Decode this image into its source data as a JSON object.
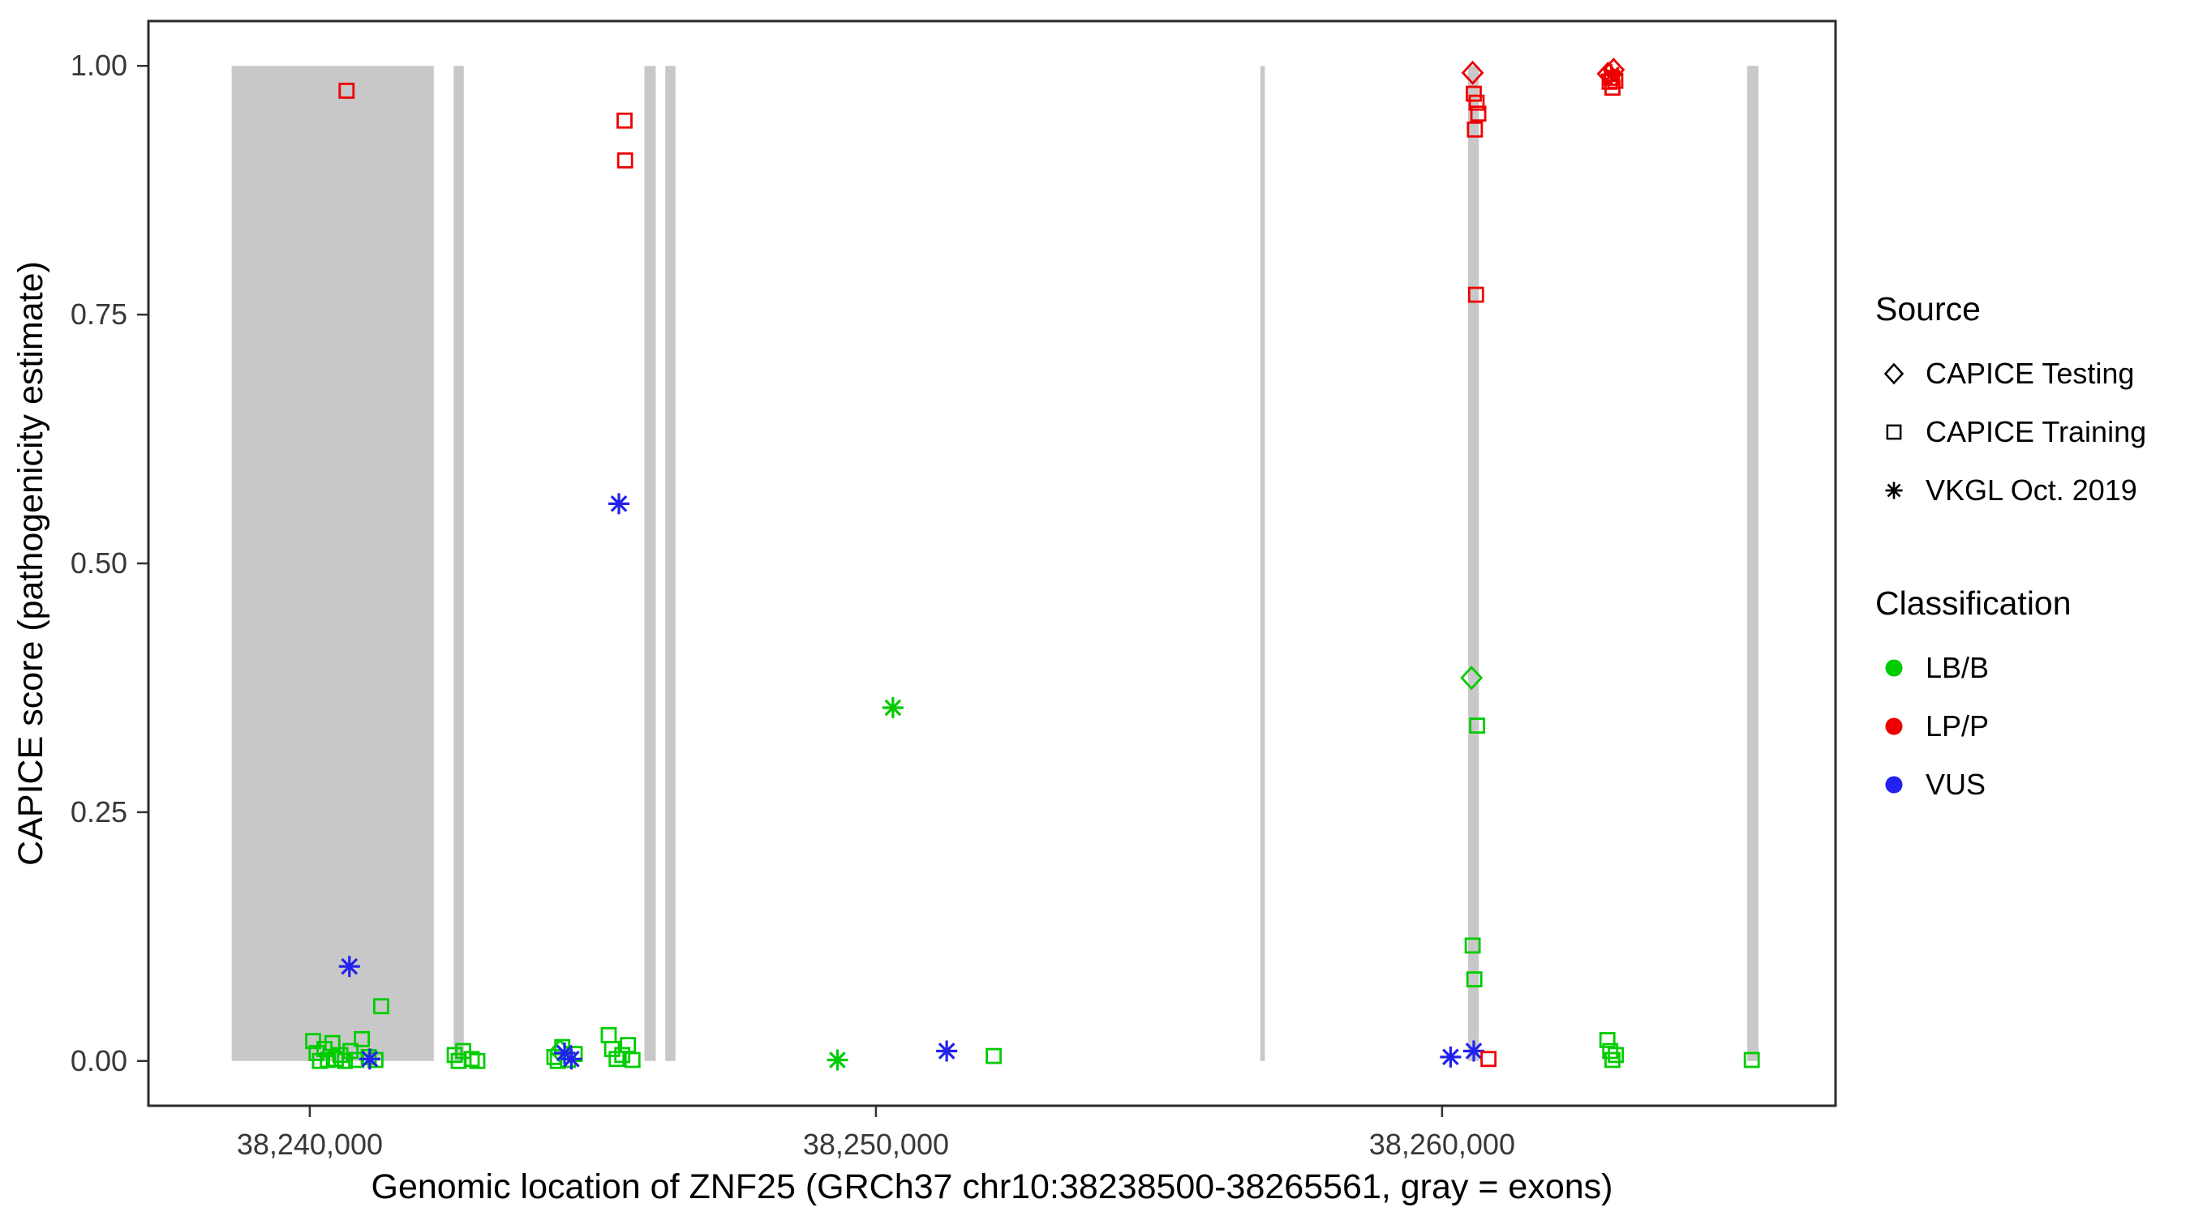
{
  "axes": {
    "x_title": "Genomic location of ZNF25 (GRCh37 chr10:38238500-38265561, gray = exons)",
    "y_title": "CAPICE score (pathogenicity estimate)"
  },
  "legend": {
    "source": {
      "title": "Source",
      "items": [
        {
          "label": "CAPICE Testing",
          "shape": "diamond"
        },
        {
          "label": "CAPICE Training",
          "shape": "square"
        },
        {
          "label": "VKGL Oct. 2019",
          "shape": "asterisk"
        }
      ]
    },
    "classification": {
      "title": "Classification",
      "items": [
        {
          "label": "LB/B",
          "color": "#00CC00"
        },
        {
          "label": "LP/P",
          "color": "#EE0000"
        },
        {
          "label": "VUS",
          "color": "#2222EE"
        }
      ]
    }
  },
  "chart_data": {
    "type": "scatter",
    "title": "",
    "xlabel": "Genomic location of ZNF25 (GRCh37 chr10:38238500-38265561, gray = exons)",
    "ylabel": "CAPICE score (pathogenicity estimate)",
    "x_domain": [
      38237150,
      38266950
    ],
    "y_domain": [
      -0.045,
      1.045
    ],
    "legend_position": "right",
    "grid": false,
    "x_ticks": [
      {
        "bp": 38240000,
        "label": "38,240,000"
      },
      {
        "bp": 38250000,
        "label": "38,250,000"
      },
      {
        "bp": 38260000,
        "label": "38,260,000"
      }
    ],
    "y_ticks": [
      {
        "value": 0.0,
        "label": "0.00"
      },
      {
        "value": 0.25,
        "label": "0.25"
      },
      {
        "value": 0.5,
        "label": "0.50"
      },
      {
        "value": 0.75,
        "label": "0.75"
      },
      {
        "value": 1.0,
        "label": "1.00"
      }
    ],
    "exon_color": "#C8C8C8",
    "exon_y_range": [
      0,
      1
    ],
    "exons": [
      [
        38238620,
        38242190
      ],
      [
        38242540,
        38242720
      ],
      [
        38245910,
        38246110
      ],
      [
        38246280,
        38246460
      ],
      [
        38256790,
        38256870
      ],
      [
        38260460,
        38260650
      ],
      [
        38265390,
        38265590
      ]
    ],
    "class_colors": {
      "LB/B": "#00CC00",
      "LP/P": "#EE0000",
      "VUS": "#2222EE"
    },
    "source_shapes": {
      "CAPICE Testing": "diamond",
      "CAPICE Training": "square",
      "VKGL Oct. 2019": "asterisk"
    },
    "points": [
      {
        "bp": 38240060,
        "score": 0.02,
        "cls": "LB/B",
        "src": "CAPICE Training"
      },
      {
        "bp": 38240120,
        "score": 0.008,
        "cls": "LB/B",
        "src": "CAPICE Training"
      },
      {
        "bp": 38240180,
        "score": 0.0,
        "cls": "LB/B",
        "src": "CAPICE Training"
      },
      {
        "bp": 38240260,
        "score": 0.012,
        "cls": "LB/B",
        "src": "CAPICE Training"
      },
      {
        "bp": 38240320,
        "score": 0.001,
        "cls": "LB/B",
        "src": "CAPICE Training"
      },
      {
        "bp": 38240400,
        "score": 0.018,
        "cls": "LB/B",
        "src": "CAPICE Training"
      },
      {
        "bp": 38240460,
        "score": 0.002,
        "cls": "LB/B",
        "src": "CAPICE Training"
      },
      {
        "bp": 38240540,
        "score": 0.006,
        "cls": "LB/B",
        "src": "CAPICE Training"
      },
      {
        "bp": 38240620,
        "score": 0.0,
        "cls": "LB/B",
        "src": "CAPICE Training"
      },
      {
        "bp": 38240720,
        "score": 0.01,
        "cls": "LB/B",
        "src": "CAPICE Training"
      },
      {
        "bp": 38240820,
        "score": 0.001,
        "cls": "LB/B",
        "src": "CAPICE Training"
      },
      {
        "bp": 38240920,
        "score": 0.022,
        "cls": "LB/B",
        "src": "CAPICE Training"
      },
      {
        "bp": 38241040,
        "score": 0.004,
        "cls": "LB/B",
        "src": "CAPICE Training"
      },
      {
        "bp": 38241160,
        "score": 0.001,
        "cls": "LB/B",
        "src": "CAPICE Training"
      },
      {
        "bp": 38241260,
        "score": 0.055,
        "cls": "LB/B",
        "src": "CAPICE Training"
      },
      {
        "bp": 38240650,
        "score": 0.975,
        "cls": "LP/P",
        "src": "CAPICE Training"
      },
      {
        "bp": 38240700,
        "score": 0.095,
        "cls": "VUS",
        "src": "VKGL Oct. 2019"
      },
      {
        "bp": 38241060,
        "score": 0.002,
        "cls": "VUS",
        "src": "VKGL Oct. 2019"
      },
      {
        "bp": 38242560,
        "score": 0.006,
        "cls": "LB/B",
        "src": "CAPICE Training"
      },
      {
        "bp": 38242630,
        "score": 0.0,
        "cls": "LB/B",
        "src": "CAPICE Training"
      },
      {
        "bp": 38242710,
        "score": 0.01,
        "cls": "LB/B",
        "src": "CAPICE Training"
      },
      {
        "bp": 38242860,
        "score": 0.002,
        "cls": "LB/B",
        "src": "CAPICE Training"
      },
      {
        "bp": 38242960,
        "score": 0.0,
        "cls": "LB/B",
        "src": "CAPICE Training"
      },
      {
        "bp": 38244320,
        "score": 0.004,
        "cls": "LB/B",
        "src": "CAPICE Training"
      },
      {
        "bp": 38244380,
        "score": 0.0,
        "cls": "LB/B",
        "src": "CAPICE Training"
      },
      {
        "bp": 38244460,
        "score": 0.014,
        "cls": "LB/B",
        "src": "CAPICE Training"
      },
      {
        "bp": 38244560,
        "score": 0.001,
        "cls": "LB/B",
        "src": "CAPICE Training"
      },
      {
        "bp": 38244680,
        "score": 0.007,
        "cls": "LB/B",
        "src": "CAPICE Training"
      },
      {
        "bp": 38244420,
        "score": 0.01,
        "cls": "LB/B",
        "src": "CAPICE Testing"
      },
      {
        "bp": 38244500,
        "score": 0.008,
        "cls": "VUS",
        "src": "VKGL Oct. 2019"
      },
      {
        "bp": 38244620,
        "score": 0.002,
        "cls": "VUS",
        "src": "VKGL Oct. 2019"
      },
      {
        "bp": 38245280,
        "score": 0.026,
        "cls": "LB/B",
        "src": "CAPICE Training"
      },
      {
        "bp": 38245340,
        "score": 0.012,
        "cls": "LB/B",
        "src": "CAPICE Training"
      },
      {
        "bp": 38245420,
        "score": 0.002,
        "cls": "LB/B",
        "src": "CAPICE Training"
      },
      {
        "bp": 38245520,
        "score": 0.006,
        "cls": "LB/B",
        "src": "CAPICE Training"
      },
      {
        "bp": 38245620,
        "score": 0.016,
        "cls": "LB/B",
        "src": "CAPICE Training"
      },
      {
        "bp": 38245700,
        "score": 0.001,
        "cls": "LB/B",
        "src": "CAPICE Training"
      },
      {
        "bp": 38245460,
        "score": 0.56,
        "cls": "VUS",
        "src": "VKGL Oct. 2019"
      },
      {
        "bp": 38245560,
        "score": 0.945,
        "cls": "LP/P",
        "src": "CAPICE Training"
      },
      {
        "bp": 38245570,
        "score": 0.905,
        "cls": "LP/P",
        "src": "CAPICE Training"
      },
      {
        "bp": 38249320,
        "score": 0.001,
        "cls": "LB/B",
        "src": "VKGL Oct. 2019"
      },
      {
        "bp": 38250300,
        "score": 0.355,
        "cls": "LB/B",
        "src": "VKGL Oct. 2019"
      },
      {
        "bp": 38251250,
        "score": 0.01,
        "cls": "VUS",
        "src": "VKGL Oct. 2019"
      },
      {
        "bp": 38252080,
        "score": 0.005,
        "cls": "LB/B",
        "src": "CAPICE Training"
      },
      {
        "bp": 38260540,
        "score": 0.993,
        "cls": "LP/P",
        "src": "CAPICE Testing"
      },
      {
        "bp": 38260560,
        "score": 0.972,
        "cls": "LP/P",
        "src": "CAPICE Training"
      },
      {
        "bp": 38260610,
        "score": 0.963,
        "cls": "LP/P",
        "src": "CAPICE Training"
      },
      {
        "bp": 38260640,
        "score": 0.952,
        "cls": "LP/P",
        "src": "CAPICE Training"
      },
      {
        "bp": 38260580,
        "score": 0.936,
        "cls": "LP/P",
        "src": "CAPICE Training"
      },
      {
        "bp": 38260600,
        "score": 0.77,
        "cls": "LP/P",
        "src": "CAPICE Training"
      },
      {
        "bp": 38260520,
        "score": 0.385,
        "cls": "LB/B",
        "src": "CAPICE Testing"
      },
      {
        "bp": 38260620,
        "score": 0.337,
        "cls": "LB/B",
        "src": "CAPICE Training"
      },
      {
        "bp": 38260540,
        "score": 0.116,
        "cls": "LB/B",
        "src": "CAPICE Training"
      },
      {
        "bp": 38260570,
        "score": 0.082,
        "cls": "LB/B",
        "src": "CAPICE Training"
      },
      {
        "bp": 38260150,
        "score": 0.004,
        "cls": "VUS",
        "src": "VKGL Oct. 2019"
      },
      {
        "bp": 38260560,
        "score": 0.01,
        "cls": "VUS",
        "src": "VKGL Oct. 2019"
      },
      {
        "bp": 38260820,
        "score": 0.002,
        "cls": "LP/P",
        "src": "CAPICE Training"
      },
      {
        "bp": 38262930,
        "score": 0.992,
        "cls": "LP/P",
        "src": "CAPICE Testing"
      },
      {
        "bp": 38263030,
        "score": 0.996,
        "cls": "LP/P",
        "src": "CAPICE Testing"
      },
      {
        "bp": 38262960,
        "score": 0.984,
        "cls": "LP/P",
        "src": "CAPICE Training"
      },
      {
        "bp": 38263000,
        "score": 0.988,
        "cls": "LP/P",
        "src": "CAPICE Training"
      },
      {
        "bp": 38263060,
        "score": 0.985,
        "cls": "LP/P",
        "src": "CAPICE Training"
      },
      {
        "bp": 38263010,
        "score": 0.978,
        "cls": "LP/P",
        "src": "CAPICE Training"
      },
      {
        "bp": 38262990,
        "score": 0.991,
        "cls": "LP/P",
        "src": "VKGL Oct. 2019"
      },
      {
        "bp": 38262920,
        "score": 0.021,
        "cls": "LB/B",
        "src": "CAPICE Training"
      },
      {
        "bp": 38262970,
        "score": 0.01,
        "cls": "LB/B",
        "src": "CAPICE Training"
      },
      {
        "bp": 38263010,
        "score": 0.001,
        "cls": "LB/B",
        "src": "CAPICE Training"
      },
      {
        "bp": 38263070,
        "score": 0.006,
        "cls": "LB/B",
        "src": "CAPICE Training"
      },
      {
        "bp": 38265470,
        "score": 0.001,
        "cls": "LB/B",
        "src": "CAPICE Training"
      }
    ]
  }
}
